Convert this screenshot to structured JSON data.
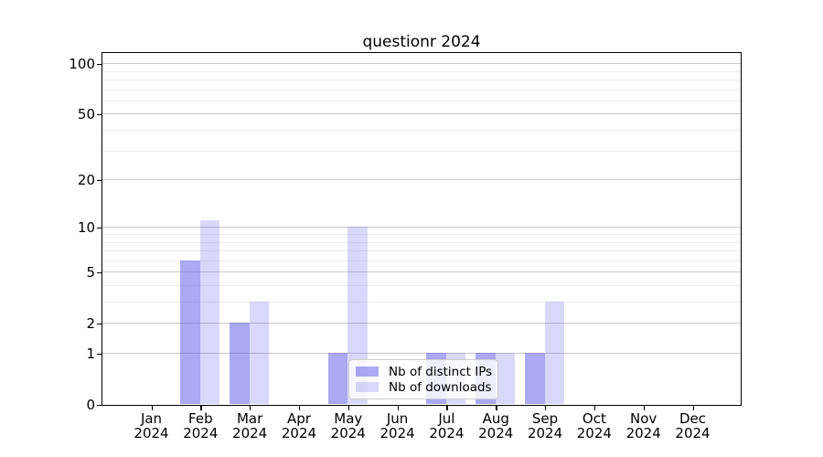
{
  "chart_data": {
    "type": "bar",
    "title": "questionr 2024",
    "categories": [
      "Jan\n2024",
      "Feb\n2024",
      "Mar\n2024",
      "Apr\n2024",
      "May\n2024",
      "Jun\n2024",
      "Jul\n2024",
      "Aug\n2024",
      "Sep\n2024",
      "Oct\n2024",
      "Nov\n2024",
      "Dec\n2024"
    ],
    "series": [
      {
        "name": "Nb of distinct IPs",
        "color": "rgba(102,99,235,0.55)",
        "values": [
          0,
          6,
          2,
          0,
          1,
          0,
          1,
          1,
          1,
          0,
          0,
          0
        ]
      },
      {
        "name": "Nb of downloads",
        "color": "rgba(102,99,235,0.25)",
        "values": [
          0,
          11,
          3,
          0,
          10,
          0,
          1,
          1,
          3,
          0,
          0,
          0
        ]
      }
    ],
    "y_axis": {
      "scale": "log1p",
      "major_ticks": [
        0,
        1,
        2,
        5,
        10,
        20,
        50,
        100
      ],
      "minor_gridlines": [
        3,
        4,
        6,
        7,
        8,
        9,
        30,
        40,
        60,
        70,
        80,
        90
      ],
      "ylim": [
        0,
        115
      ]
    },
    "legend_position": "lower center",
    "grid": true,
    "colors": {
      "grid_major": "#c8c8c8",
      "grid_minor": "#ececec",
      "spine": "#000000",
      "text": "#000000",
      "legend_border": "#cccccc",
      "legend_background": "rgba(255,255,255,0.8)"
    }
  }
}
